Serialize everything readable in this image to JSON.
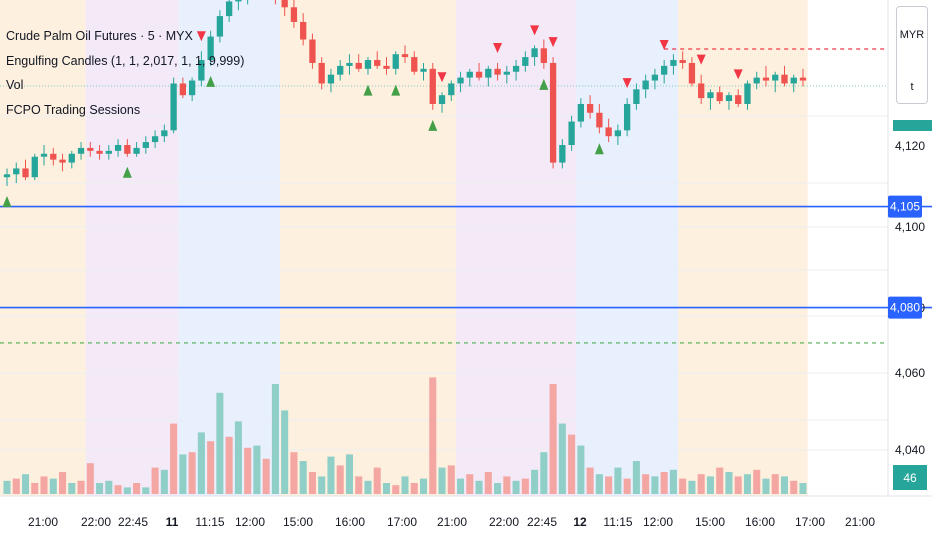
{
  "legend": {
    "symbol": "Crude Palm Oil Futures · 5 · MYX",
    "indicator_engulfing": "Engulfing Candles (1, 1, 2,017, 1, 1, 9,999)",
    "indicator_vol": "Vol",
    "indicator_sessions": "FCPO Trading Sessions"
  },
  "currency_box": {
    "currency": "MYR",
    "unit": "t"
  },
  "colors": {
    "up": "#26a69a",
    "down": "#ef5350",
    "up_volume": "#8fcfc7",
    "down_volume": "#f4a6a3",
    "session_asia": "#fdf0df",
    "session_night": "#f3e9f7",
    "session_europe": "#e8effd",
    "level_line": "#2962ff",
    "dashed_red": "#f23645",
    "dashed_green": "#4caf50",
    "signal_up": "#43a047",
    "signal_down": "#f23645"
  },
  "chart_data": {
    "type": "candlestick",
    "title": "Crude Palm Oil Futures · 5 · MYX",
    "y_axis": {
      "tick_labels": [
        "4,120",
        "4,100",
        "4,080",
        "4,060",
        "4,040"
      ],
      "visible_range": [
        4033,
        4140
      ]
    },
    "x_axis": {
      "tick_labels": [
        "21:00",
        "22:00",
        "22:45",
        "11",
        "11:15",
        "12:00",
        "15:00",
        "16:00",
        "17:00",
        "21:00",
        "22:00",
        "22:45",
        "12",
        "11:15",
        "12:00",
        "15:00",
        "16:00",
        "17:00",
        "21:00"
      ],
      "bold_labels": [
        "11",
        "12"
      ]
    },
    "price_levels": [
      {
        "label": "4,105",
        "value": 4105,
        "style": "solid-blue"
      },
      {
        "label": "4,080",
        "value": 4080,
        "style": "solid-blue"
      },
      {
        "value": 4072,
        "style": "dashed-green"
      },
      {
        "value": 4151,
        "style": "dashed-red"
      },
      {
        "value": 4145,
        "style": "dotted-teal"
      }
    ],
    "current_price_marker": {
      "value": 4124,
      "label": ""
    },
    "volume_marker": {
      "label": "46"
    },
    "sessions": [
      {
        "from": 0,
        "to": 9,
        "kind": "asia"
      },
      {
        "from": 9,
        "to": 19,
        "kind": "night"
      },
      {
        "from": 19,
        "to": 30,
        "kind": "europe"
      },
      {
        "from": 30,
        "to": 49,
        "kind": "asia"
      },
      {
        "from": 49,
        "to": 62,
        "kind": "night"
      },
      {
        "from": 62,
        "to": 73,
        "kind": "europe"
      },
      {
        "from": 73,
        "to": 87,
        "kind": "asia"
      }
    ],
    "candles": [
      [
        4113.0,
        4116.0,
        4110.0,
        4114.0
      ],
      [
        4114.0,
        4118.0,
        4111.0,
        4116.0
      ],
      [
        4116.0,
        4119.0,
        4112.0,
        4113.0
      ],
      [
        4113.0,
        4121.0,
        4112.0,
        4120.0
      ],
      [
        4120.0,
        4124.0,
        4117.0,
        4121.0
      ],
      [
        4121.0,
        4123.0,
        4117.0,
        4119.0
      ],
      [
        4119.0,
        4121.0,
        4115.0,
        4118.0
      ],
      [
        4118.0,
        4122.0,
        4116.0,
        4121.0
      ],
      [
        4121.0,
        4125.0,
        4119.0,
        4123.0
      ],
      [
        4123.0,
        4125.0,
        4120.0,
        4122.0
      ],
      [
        4122.0,
        4124.0,
        4119.0,
        4121.0
      ],
      [
        4121.0,
        4124.0,
        4119.0,
        4122.0
      ],
      [
        4122.0,
        4126.0,
        4120.0,
        4124.0
      ],
      [
        4124.0,
        4126.0,
        4120.0,
        4121.0
      ],
      [
        4121.0,
        4125.0,
        4120.0,
        4123.0
      ],
      [
        4123.0,
        4127.0,
        4121.0,
        4125.0
      ],
      [
        4125.0,
        4129.0,
        4123.0,
        4127.0
      ],
      [
        4127.0,
        4131.0,
        4125.0,
        4129.0
      ],
      [
        4129.0,
        4147.0,
        4128.0,
        4145.0
      ],
      [
        4145.0,
        4147.0,
        4140.0,
        4141.0
      ],
      [
        4141.0,
        4147.0,
        4139.0,
        4146.0
      ],
      [
        4146.0,
        4156.0,
        4144.0,
        4153.0
      ],
      [
        4153.0,
        4163.0,
        4151.0,
        4161.0
      ],
      [
        4161.0,
        4170.0,
        4159.0,
        4168.0
      ],
      [
        4168.0,
        4175.0,
        4166.0,
        4173.0
      ],
      [
        4173.0,
        4178.0,
        4170.0,
        4175.0
      ],
      [
        4175.0,
        4180.0,
        4172.0,
        4178.0
      ],
      [
        4178.0,
        4182.0,
        4175.0,
        4180.0
      ],
      [
        4180.0,
        4183.0,
        4176.0,
        4178.0
      ],
      [
        4178.0,
        4181.0,
        4172.0,
        4175.0
      ],
      [
        4175.0,
        4178.0,
        4168.0,
        4171.0
      ],
      [
        4171.0,
        4174.0,
        4164.0,
        4166.0
      ],
      [
        4166.0,
        4169.0,
        4158.0,
        4160.0
      ],
      [
        4160.0,
        4162.0,
        4150.0,
        4152.0
      ],
      [
        4152.0,
        4154.0,
        4143.0,
        4145.0
      ],
      [
        4145.0,
        4150.0,
        4142.0,
        4148.0
      ],
      [
        4148.0,
        4153.0,
        4146.0,
        4151.0
      ],
      [
        4151.0,
        4155.0,
        4148.0,
        4152.0
      ],
      [
        4152.0,
        4155.0,
        4149.0,
        4150.0
      ],
      [
        4150.0,
        4154.0,
        4148.0,
        4153.0
      ],
      [
        4153.0,
        4156.0,
        4150.0,
        4151.0
      ],
      [
        4151.0,
        4154.0,
        4148.0,
        4150.0
      ],
      [
        4150.0,
        4156.0,
        4148.0,
        4155.0
      ],
      [
        4155.0,
        4158.0,
        4152.0,
        4154.0
      ],
      [
        4154.0,
        4156.0,
        4148.0,
        4149.0
      ],
      [
        4149.0,
        4152.0,
        4146.0,
        4150.0
      ],
      [
        4150.0,
        4152.0,
        4136.0,
        4138.0
      ],
      [
        4138.0,
        4142.0,
        4135.0,
        4141.0
      ],
      [
        4141.0,
        4146.0,
        4139.0,
        4145.0
      ],
      [
        4145.0,
        4149.0,
        4142.0,
        4147.0
      ],
      [
        4147.0,
        4150.0,
        4144.0,
        4149.0
      ],
      [
        4149.0,
        4152.0,
        4146.0,
        4147.0
      ],
      [
        4147.0,
        4151.0,
        4144.0,
        4150.0
      ],
      [
        4150.0,
        4152.0,
        4146.0,
        4148.0
      ],
      [
        4148.0,
        4151.0,
        4145.0,
        4149.0
      ],
      [
        4149.0,
        4153.0,
        4146.0,
        4151.0
      ],
      [
        4151.0,
        4156.0,
        4149.0,
        4154.0
      ],
      [
        4154.0,
        4158.0,
        4151.0,
        4157.0
      ],
      [
        4157.0,
        4160.0,
        4150.0,
        4152.0
      ],
      [
        4152.0,
        4154.0,
        4116.0,
        4118.0
      ],
      [
        4118.0,
        4126.0,
        4116.0,
        4124.0
      ],
      [
        4124.0,
        4134.0,
        4122.0,
        4132.0
      ],
      [
        4132.0,
        4140.0,
        4130.0,
        4138.0
      ],
      [
        4138.0,
        4141.0,
        4133.0,
        4135.0
      ],
      [
        4135.0,
        4138.0,
        4128.0,
        4130.0
      ],
      [
        4130.0,
        4133.0,
        4125.0,
        4127.0
      ],
      [
        4127.0,
        4131.0,
        4124.0,
        4129.0
      ],
      [
        4129.0,
        4140.0,
        4127.0,
        4138.0
      ],
      [
        4138.0,
        4145.0,
        4136.0,
        4143.0
      ],
      [
        4143.0,
        4148.0,
        4140.0,
        4146.0
      ],
      [
        4146.0,
        4150.0,
        4143.0,
        4148.0
      ],
      [
        4148.0,
        4153.0,
        4145.0,
        4151.0
      ],
      [
        4151.0,
        4155.0,
        4148.0,
        4153.0
      ],
      [
        4153.0,
        4156.0,
        4150.0,
        4152.0
      ],
      [
        4152.0,
        4154.0,
        4144.0,
        4145.0
      ],
      [
        4145.0,
        4148.0,
        4138.0,
        4140.0
      ],
      [
        4140.0,
        4143.0,
        4136.0,
        4142.0
      ],
      [
        4142.0,
        4144.0,
        4138.0,
        4139.0
      ],
      [
        4139.0,
        4142.0,
        4136.0,
        4141.0
      ],
      [
        4141.0,
        4143.0,
        4137.0,
        4138.0
      ],
      [
        4138.0,
        4146.0,
        4136.0,
        4145.0
      ],
      [
        4145.0,
        4149.0,
        4143.0,
        4147.0
      ],
      [
        4147.0,
        4151.0,
        4144.0,
        4146.0
      ],
      [
        4146.0,
        4149.0,
        4142.0,
        4148.0
      ],
      [
        4148.0,
        4151.0,
        4144.0,
        4145.0
      ],
      [
        4145.0,
        4148.0,
        4142.0,
        4147.0
      ],
      [
        4147.0,
        4150.0,
        4144.0,
        4146.0
      ]
    ],
    "volume": [
      [
        6,
        "up"
      ],
      [
        7,
        "down"
      ],
      [
        9,
        "up"
      ],
      [
        5,
        "down"
      ],
      [
        8,
        "down"
      ],
      [
        7,
        "up"
      ],
      [
        10,
        "down"
      ],
      [
        5,
        "up"
      ],
      [
        6,
        "down"
      ],
      [
        14,
        "down"
      ],
      [
        5,
        "up"
      ],
      [
        6,
        "up"
      ],
      [
        4,
        "down"
      ],
      [
        3,
        "up"
      ],
      [
        5,
        "down"
      ],
      [
        3,
        "up"
      ],
      [
        12,
        "down"
      ],
      [
        11,
        "up"
      ],
      [
        32,
        "down"
      ],
      [
        18,
        "up"
      ],
      [
        19,
        "down"
      ],
      [
        28,
        "up"
      ],
      [
        24,
        "down"
      ],
      [
        46,
        "up"
      ],
      [
        26,
        "down"
      ],
      [
        33,
        "up"
      ],
      [
        21,
        "down"
      ],
      [
        22,
        "up"
      ],
      [
        16,
        "down"
      ],
      [
        50,
        "up"
      ],
      [
        38,
        "up"
      ],
      [
        19,
        "down"
      ],
      [
        15,
        "up"
      ],
      [
        10,
        "down"
      ],
      [
        8,
        "up"
      ],
      [
        17,
        "up"
      ],
      [
        13,
        "down"
      ],
      [
        18,
        "up"
      ],
      [
        8,
        "down"
      ],
      [
        6,
        "up"
      ],
      [
        12,
        "down"
      ],
      [
        5,
        "up"
      ],
      [
        4,
        "down"
      ],
      [
        8,
        "up"
      ],
      [
        5,
        "down"
      ],
      [
        7,
        "up"
      ],
      [
        53,
        "down"
      ],
      [
        12,
        "up"
      ],
      [
        13,
        "down"
      ],
      [
        7,
        "up"
      ],
      [
        9,
        "down"
      ],
      [
        6,
        "up"
      ],
      [
        10,
        "down"
      ],
      [
        5,
        "up"
      ],
      [
        8,
        "down"
      ],
      [
        6,
        "up"
      ],
      [
        7,
        "down"
      ],
      [
        11,
        "up"
      ],
      [
        19,
        "up"
      ],
      [
        50,
        "down"
      ],
      [
        32,
        "up"
      ],
      [
        27,
        "down"
      ],
      [
        22,
        "up"
      ],
      [
        12,
        "down"
      ],
      [
        9,
        "up"
      ],
      [
        8,
        "down"
      ],
      [
        12,
        "up"
      ],
      [
        7,
        "down"
      ],
      [
        15,
        "up"
      ],
      [
        9,
        "down"
      ],
      [
        8,
        "up"
      ],
      [
        10,
        "down"
      ],
      [
        11,
        "up"
      ],
      [
        7,
        "down"
      ],
      [
        6,
        "up"
      ],
      [
        9,
        "down"
      ],
      [
        8,
        "up"
      ],
      [
        12,
        "down"
      ],
      [
        10,
        "up"
      ],
      [
        8,
        "down"
      ],
      [
        9,
        "up"
      ],
      [
        11,
        "down"
      ],
      [
        7,
        "up"
      ],
      [
        9,
        "down"
      ],
      [
        8,
        "up"
      ],
      [
        6,
        "down"
      ],
      [
        5,
        "up"
      ]
    ],
    "signals_up": [
      0,
      13,
      22,
      39,
      42,
      46,
      58,
      64
    ],
    "signals_down": [
      21,
      47,
      53,
      57,
      59,
      67,
      71,
      75,
      79
    ]
  }
}
